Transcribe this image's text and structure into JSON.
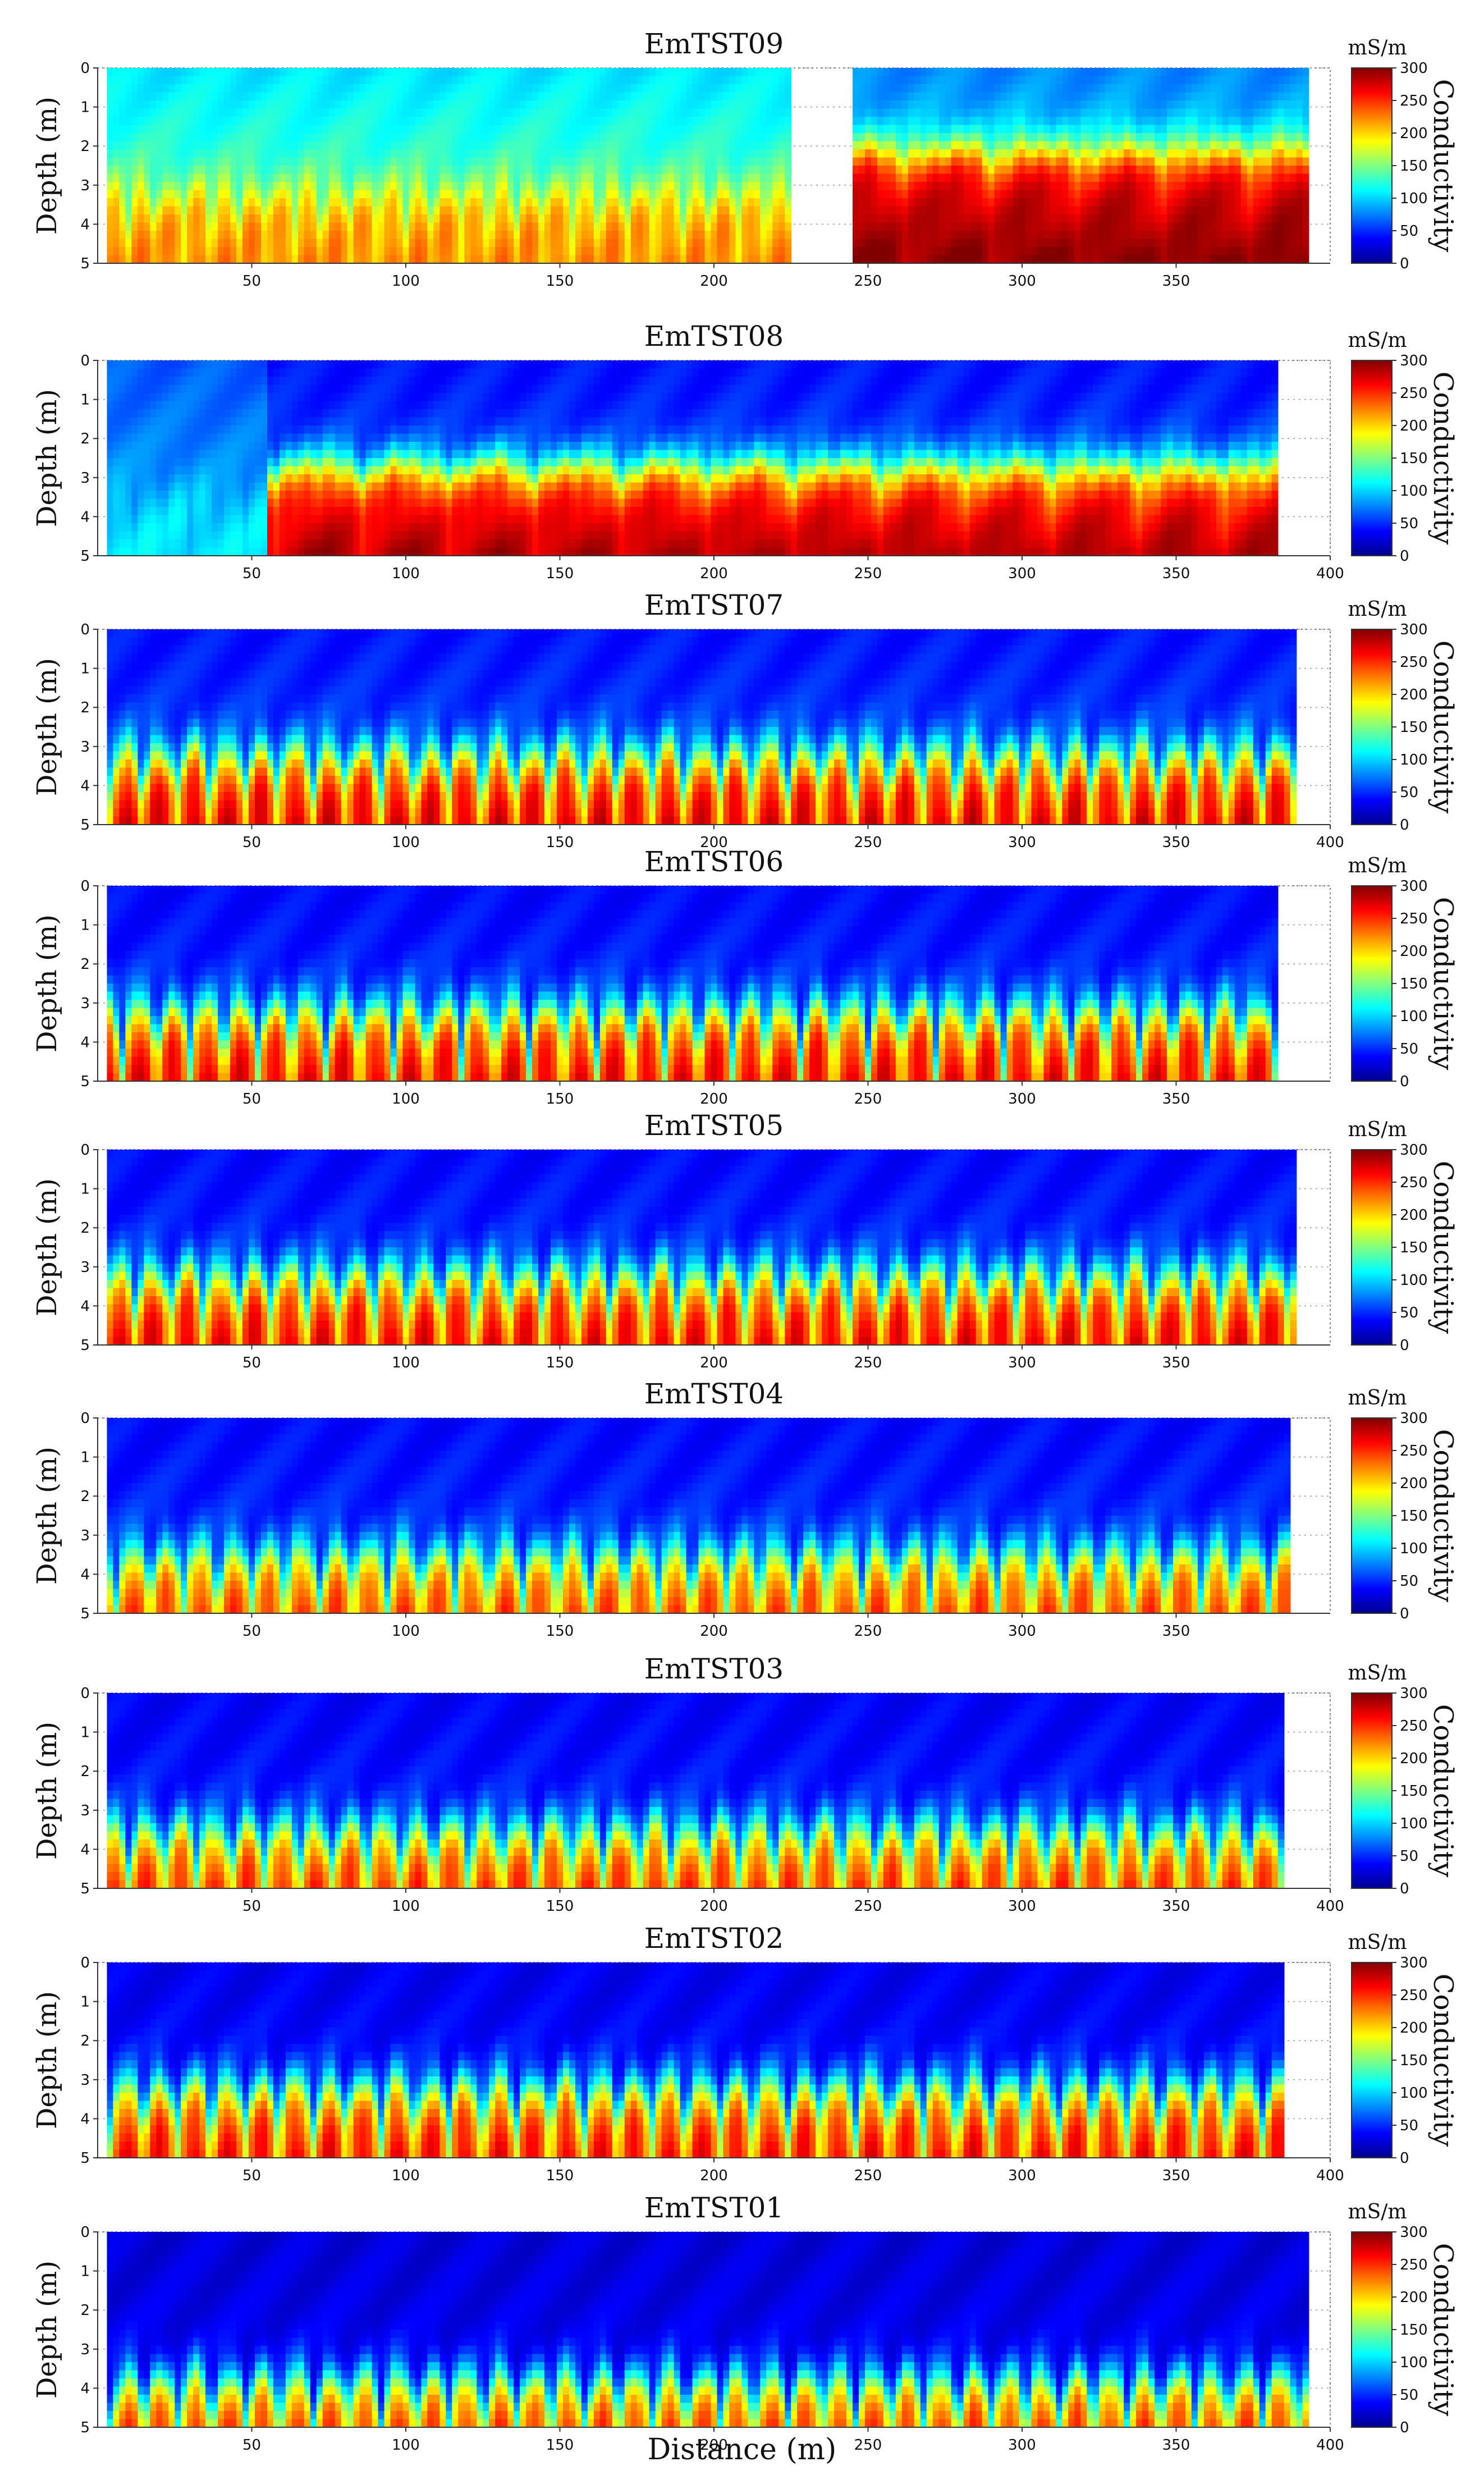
{
  "figure": {
    "xlabel": "Distance (m)"
  },
  "colormap": {
    "name": "jet",
    "stops": [
      "#00008f",
      "#0000ff",
      "#0080ff",
      "#00ffff",
      "#80ff80",
      "#ffff00",
      "#ff8000",
      "#ff0000",
      "#800000"
    ]
  },
  "chart_data": [
    {
      "type": "heatmap",
      "title": "EmTST09",
      "ylabel": "Depth (m)",
      "xlim": [
        0,
        400
      ],
      "ylim": [
        0,
        5
      ],
      "x_extent": [
        3,
        392
      ],
      "yticks": [
        0,
        1,
        2,
        3,
        4,
        5
      ],
      "xticks": [
        50,
        100,
        150,
        200,
        250,
        300,
        350
      ],
      "colorbar": {
        "label": "Conductivity",
        "units": "mS/m",
        "range": [
          0,
          300
        ],
        "ticks": [
          0,
          50,
          100,
          150,
          200,
          250,
          300
        ]
      },
      "missing_ranges": [
        [
          224,
          245
        ]
      ],
      "segments": [
        {
          "x": [
            3,
            224
          ],
          "shallow": 150,
          "deep": 230,
          "interface_depth": 3.0,
          "pattern": "patchy"
        },
        {
          "x": [
            245,
            392
          ],
          "shallow": 110,
          "deep": 290,
          "interface_depth": 2.0,
          "pattern": "continuous"
        }
      ]
    },
    {
      "type": "heatmap",
      "title": "EmTST08",
      "ylabel": "Depth (m)",
      "xlim": [
        0,
        400
      ],
      "ylim": [
        0,
        5
      ],
      "x_extent": [
        3,
        383
      ],
      "yticks": [
        0,
        1,
        2,
        3,
        4,
        5
      ],
      "xticks": [
        50,
        100,
        150,
        200,
        250,
        300,
        350,
        400
      ],
      "colorbar": {
        "label": "Conductivity",
        "units": "mS/m",
        "range": [
          0,
          300
        ],
        "ticks": [
          0,
          50,
          100,
          150,
          200,
          250,
          300
        ]
      },
      "missing_ranges": [],
      "segments": [
        {
          "x": [
            3,
            55
          ],
          "shallow": 90,
          "deep": 110,
          "interface_depth": 3.2,
          "pattern": "patchy"
        },
        {
          "x": [
            55,
            383
          ],
          "shallow": 60,
          "deep": 285,
          "interface_depth": 2.6,
          "pattern": "continuous"
        }
      ]
    },
    {
      "type": "heatmap",
      "title": "EmTST07",
      "ylabel": "Depth (m)",
      "xlim": [
        0,
        400
      ],
      "ylim": [
        0,
        5
      ],
      "x_extent": [
        3,
        388
      ],
      "yticks": [
        0,
        1,
        2,
        3,
        4,
        5
      ],
      "xticks": [
        50,
        100,
        150,
        200,
        250,
        300,
        350,
        400
      ],
      "colorbar": {
        "label": "Conductivity",
        "units": "mS/m",
        "range": [
          0,
          300
        ],
        "ticks": [
          0,
          50,
          100,
          150,
          200,
          250,
          300
        ]
      },
      "missing_ranges": [],
      "segments": [
        {
          "x": [
            3,
            388
          ],
          "shallow": 60,
          "deep": 280,
          "interface_depth": 3.0,
          "pattern": "lobed"
        }
      ]
    },
    {
      "type": "heatmap",
      "title": "EmTST06",
      "ylabel": "Depth (m)",
      "xlim": [
        0,
        400
      ],
      "ylim": [
        0,
        5
      ],
      "x_extent": [
        3,
        383
      ],
      "yticks": [
        0,
        1,
        2,
        3,
        4,
        5
      ],
      "xticks": [
        50,
        100,
        150,
        200,
        250,
        300,
        350
      ],
      "colorbar": {
        "label": "Conductivity",
        "units": "mS/m",
        "range": [
          0,
          300
        ],
        "ticks": [
          0,
          50,
          100,
          150,
          200,
          250,
          300
        ]
      },
      "missing_ranges": [],
      "segments": [
        {
          "x": [
            3,
            383
          ],
          "shallow": 55,
          "deep": 275,
          "interface_depth": 3.0,
          "pattern": "lobed"
        }
      ]
    },
    {
      "type": "heatmap",
      "title": "EmTST05",
      "ylabel": "Depth (m)",
      "xlim": [
        0,
        400
      ],
      "ylim": [
        0,
        5
      ],
      "x_extent": [
        3,
        388
      ],
      "yticks": [
        0,
        1,
        2,
        3,
        4,
        5
      ],
      "xticks": [
        50,
        100,
        150,
        200,
        250,
        300,
        350
      ],
      "colorbar": {
        "label": "Conductivity",
        "units": "mS/m",
        "range": [
          0,
          300
        ],
        "ticks": [
          0,
          50,
          100,
          150,
          200,
          250,
          300
        ]
      },
      "missing_ranges": [],
      "segments": [
        {
          "x": [
            3,
            388
          ],
          "shallow": 55,
          "deep": 275,
          "interface_depth": 3.0,
          "pattern": "lobed"
        }
      ]
    },
    {
      "type": "heatmap",
      "title": "EmTST04",
      "ylabel": "Depth (m)",
      "xlim": [
        0,
        400
      ],
      "ylim": [
        0,
        5
      ],
      "x_extent": [
        3,
        387
      ],
      "yticks": [
        0,
        1,
        2,
        3,
        4,
        5
      ],
      "xticks": [
        50,
        100,
        150,
        200,
        250,
        300,
        350
      ],
      "colorbar": {
        "label": "Conductivity",
        "units": "mS/m",
        "range": [
          0,
          300
        ],
        "ticks": [
          0,
          50,
          100,
          150,
          200,
          250,
          300
        ]
      },
      "missing_ranges": [],
      "segments": [
        {
          "x": [
            3,
            387
          ],
          "shallow": 55,
          "deep": 255,
          "interface_depth": 3.3,
          "pattern": "lobed"
        }
      ]
    },
    {
      "type": "heatmap",
      "title": "EmTST03",
      "ylabel": "Depth (m)",
      "xlim": [
        0,
        400
      ],
      "ylim": [
        0,
        5
      ],
      "x_extent": [
        3,
        385
      ],
      "yticks": [
        0,
        1,
        2,
        3,
        4,
        5
      ],
      "xticks": [
        50,
        100,
        150,
        200,
        250,
        300,
        350,
        400
      ],
      "colorbar": {
        "label": "Conductivity",
        "units": "mS/m",
        "range": [
          0,
          300
        ],
        "ticks": [
          0,
          50,
          100,
          150,
          200,
          250,
          300
        ]
      },
      "missing_ranges": [],
      "segments": [
        {
          "x": [
            3,
            385
          ],
          "shallow": 50,
          "deep": 260,
          "interface_depth": 3.3,
          "pattern": "lobed"
        }
      ]
    },
    {
      "type": "heatmap",
      "title": "EmTST02",
      "ylabel": "Depth (m)",
      "xlim": [
        0,
        400
      ],
      "ylim": [
        0,
        5
      ],
      "x_extent": [
        3,
        385
      ],
      "yticks": [
        0,
        1,
        2,
        3,
        4,
        5
      ],
      "xticks": [
        50,
        100,
        150,
        200,
        250,
        300,
        350,
        400
      ],
      "colorbar": {
        "label": "Conductivity",
        "units": "mS/m",
        "range": [
          0,
          300
        ],
        "ticks": [
          0,
          50,
          100,
          150,
          200,
          250,
          300
        ]
      },
      "missing_ranges": [],
      "segments": [
        {
          "x": [
            3,
            385
          ],
          "shallow": 45,
          "deep": 270,
          "interface_depth": 3.0,
          "pattern": "lobed"
        }
      ]
    },
    {
      "type": "heatmap",
      "title": "EmTST01",
      "ylabel": "Depth (m)",
      "xlim": [
        0,
        400
      ],
      "ylim": [
        0,
        5
      ],
      "x_extent": [
        3,
        392
      ],
      "yticks": [
        0,
        1,
        2,
        3,
        4,
        5
      ],
      "xticks": [
        50,
        100,
        150,
        200,
        250,
        300,
        350,
        400
      ],
      "colorbar": {
        "label": "Conductivity",
        "units": "mS/m",
        "range": [
          0,
          300
        ],
        "ticks": [
          0,
          50,
          100,
          150,
          200,
          250,
          300
        ]
      },
      "missing_ranges": [],
      "segments": [
        {
          "x": [
            3,
            392
          ],
          "shallow": 35,
          "deep": 260,
          "interface_depth": 3.6,
          "pattern": "lobed"
        }
      ]
    }
  ]
}
